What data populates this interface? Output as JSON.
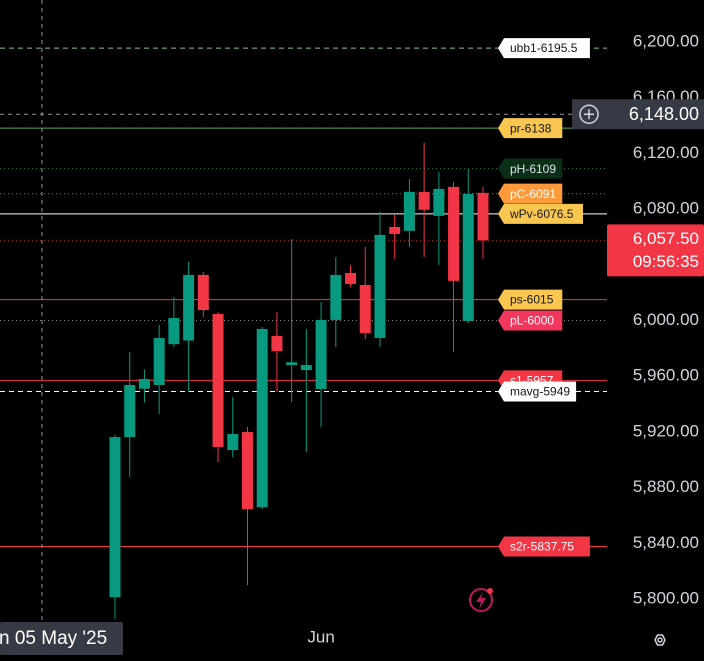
{
  "chart_data": {
    "type": "candlestick",
    "open": [
      5801.4,
      5916.3,
      5951,
      5953.7,
      5983,
      5985.6,
      6032.7,
      6004.7,
      5907,
      5919.9,
      5866,
      5988.9,
      5968,
      5964.4,
      5950.8,
      6000.4,
      6034.1,
      6025.5,
      5987.4,
      6067.1,
      6064.3,
      6092.3,
      6075,
      6095.9,
      5999.6,
      6091.6
    ],
    "high": [
      5917.8,
      5977.4,
      5965,
      5996.8,
      6016.9,
      6042,
      6034.8,
      6006,
      5945,
      5923.5,
      5995.3,
      6006,
      6058.5,
      5993.9,
      6013.3,
      6045.6,
      6039.9,
      6052.8,
      6077.9,
      6075.8,
      6101.6,
      6127.5,
      6106.6,
      6099.5,
      6108.8,
      6095.9
    ],
    "low": [
      5785.6,
      5887.6,
      5941,
      5932.9,
      5981,
      5948.7,
      6002.5,
      5898.4,
      5902,
      5810,
      5864.6,
      5948.7,
      5941.5,
      5905.6,
      5923.5,
      5981,
      6024,
      5986.7,
      5981,
      6044.2,
      6052.8,
      6045.6,
      6039.9,
      5977.4,
      5998.2,
      6044.2
    ],
    "close": [
      5916.3,
      5953.7,
      5958,
      5987.4,
      6001.8,
      6032.7,
      6007.5,
      5909.2,
      5918.5,
      5864.6,
      5993.9,
      5978,
      5970,
      5968,
      6000.4,
      6032.7,
      6026.2,
      5991,
      6061.4,
      6062.1,
      6092.3,
      6079.4,
      6094.4,
      6028.4,
      6090.8,
      6057.5
    ],
    "up_color": "#089981",
    "down_color": "#f23645",
    "ylim": [
      5780,
      6230
    ],
    "yticks": [
      {
        "value": 5800,
        "label": "5,800.00"
      },
      {
        "value": 5840,
        "label": "5,840.00"
      },
      {
        "value": 5880,
        "label": "5,880.00"
      },
      {
        "value": 5920,
        "label": "5,920.00"
      },
      {
        "value": 5960,
        "label": "5,960.00"
      },
      {
        "value": 6000,
        "label": "6,000.00"
      },
      {
        "value": 6080,
        "label": "6,080.00"
      },
      {
        "value": 6120,
        "label": "6,120.00"
      },
      {
        "value": 6160,
        "label": "6,160.00"
      },
      {
        "value": 6200,
        "label": "6,200.00"
      }
    ],
    "xticks": [
      {
        "value": 14,
        "label": "Jun"
      }
    ],
    "levels": [
      {
        "label": "ubb1-6195.5",
        "value": 6195.5,
        "label_bg": "#ffffff",
        "text_color": "#131722",
        "line_color": "#81c784",
        "line_style": "dashed"
      },
      {
        "label": "pr-6138",
        "value": 6138,
        "label_bg": "#f9c74f",
        "text_color": "#131722",
        "line_color": "#4caf50",
        "line_style": "solid"
      },
      {
        "label": "pH-6109",
        "value": 6109,
        "label_bg": "#0b2e16",
        "text_color": "#e0e3eb",
        "line_color": "#2e7d32",
        "line_style": "dotted"
      },
      {
        "label": "pC-6091",
        "value": 6091,
        "label_bg": "#ff9a3c",
        "text_color": "#ffffff",
        "line_color": "#b36a2a",
        "line_style": "dotted"
      },
      {
        "label": "wPv-6076.5",
        "value": 6076.5,
        "label_bg": "#f9c74f",
        "text_color": "#131722",
        "line_color": "#ffffff",
        "line_style": "solid"
      },
      {
        "label": "ps-6015",
        "value": 6015,
        "label_bg": "#f9c74f",
        "text_color": "#131722",
        "line_color": "#f23645",
        "line_style": "solid"
      },
      {
        "label": "pL-6000",
        "value": 6000,
        "label_bg": "#f2365e",
        "text_color": "#ffffff",
        "line_color": "#888888",
        "line_style": "dotted"
      },
      {
        "label": "s1-5957",
        "value": 5957,
        "label_bg": "#f23645",
        "text_color": "#ffffff",
        "line_color": "#f23645",
        "line_style": "solid"
      },
      {
        "label": "mavg-5949",
        "value": 5949,
        "label_bg": "#ffffff",
        "text_color": "#131722",
        "line_color": "#ffffff",
        "line_style": "dashed"
      },
      {
        "label": "s2r-5837.75",
        "value": 5837.75,
        "label_bg": "#f23645",
        "text_color": "#ffffff",
        "line_color": "#f23645",
        "line_style": "solid"
      }
    ],
    "current_price": {
      "value": 6057.5,
      "label": "6,057.50",
      "countdown": "09:56:35",
      "color": "#f23645"
    },
    "crosshair": {
      "date_label": "n 05 May '25",
      "price": 6148,
      "price_label": "6,148.00"
    }
  }
}
